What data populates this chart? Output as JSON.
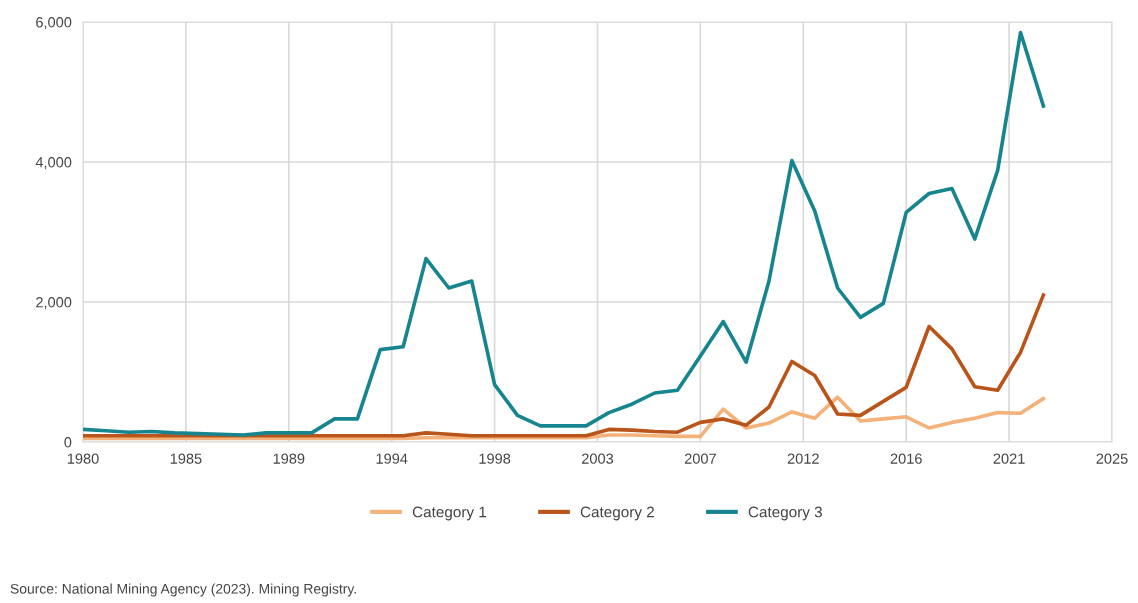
{
  "chart_data": {
    "type": "line",
    "x": [
      1980,
      1981,
      1982,
      1983,
      1984,
      1985,
      1986,
      1987,
      1988,
      1989,
      1990,
      1991,
      1992,
      1993,
      1994,
      1995,
      1996,
      1997,
      1998,
      1999,
      2000,
      2001,
      2002,
      2003,
      2004,
      2005,
      2006,
      2007,
      2008,
      2009,
      2010,
      2011,
      2012,
      2013,
      2014,
      2015,
      2016,
      2017,
      2018,
      2019,
      2020,
      2021,
      2022
    ],
    "series": [
      {
        "name": "Category 1",
        "color": "#f4b27a",
        "values": [
          50,
          50,
          50,
          50,
          50,
          50,
          50,
          50,
          50,
          50,
          50,
          50,
          50,
          50,
          50,
          60,
          60,
          60,
          60,
          60,
          60,
          60,
          60,
          100,
          100,
          90,
          80,
          80,
          470,
          200,
          270,
          430,
          340,
          640,
          300,
          330,
          360,
          200,
          280,
          340,
          420,
          410,
          620
        ]
      },
      {
        "name": "Category 2",
        "color": "#b9541a",
        "values": [
          90,
          90,
          90,
          90,
          90,
          90,
          90,
          90,
          90,
          90,
          90,
          90,
          90,
          90,
          90,
          130,
          110,
          90,
          90,
          90,
          90,
          90,
          90,
          180,
          170,
          150,
          140,
          280,
          330,
          240,
          500,
          1150,
          950,
          400,
          380,
          580,
          780,
          1650,
          1330,
          790,
          740,
          1280,
          2100
        ]
      },
      {
        "name": "Category 3",
        "color": "#17858f",
        "values": [
          180,
          160,
          140,
          150,
          130,
          120,
          110,
          100,
          130,
          130,
          130,
          330,
          330,
          1320,
          1360,
          2620,
          2200,
          2300,
          820,
          380,
          230,
          230,
          230,
          420,
          540,
          700,
          740,
          1230,
          1720,
          1140,
          2300,
          4020,
          3300,
          2200,
          1780,
          1980,
          3280,
          3550,
          3620,
          2900,
          3880,
          5850,
          4800
        ]
      }
    ],
    "xlim": [
      1980,
      2025
    ],
    "xticks": [
      1980,
      {
        "value": 1984.5,
        "label": "1985"
      },
      1989,
      {
        "value": 1993.5,
        "label": "1994"
      },
      1998,
      {
        "value": 2002.5,
        "label": "2003"
      },
      2007,
      {
        "value": 2011.5,
        "label": "2012"
      },
      2016,
      {
        "value": 2020.5,
        "label": "2021"
      },
      2025
    ],
    "ylim": [
      0,
      6000
    ],
    "yticks": [
      {
        "value": 0,
        "label": "0"
      },
      {
        "value": 2000,
        "label": "2,000"
      },
      {
        "value": 4000,
        "label": "4,000"
      },
      {
        "value": 6000,
        "label": "6,000"
      }
    ],
    "grid": true,
    "legend": "bottom",
    "line_style": "solid",
    "marker": "none",
    "annotations": [
      "Source: National Mining Agency (2023). Mining Registry."
    ]
  }
}
